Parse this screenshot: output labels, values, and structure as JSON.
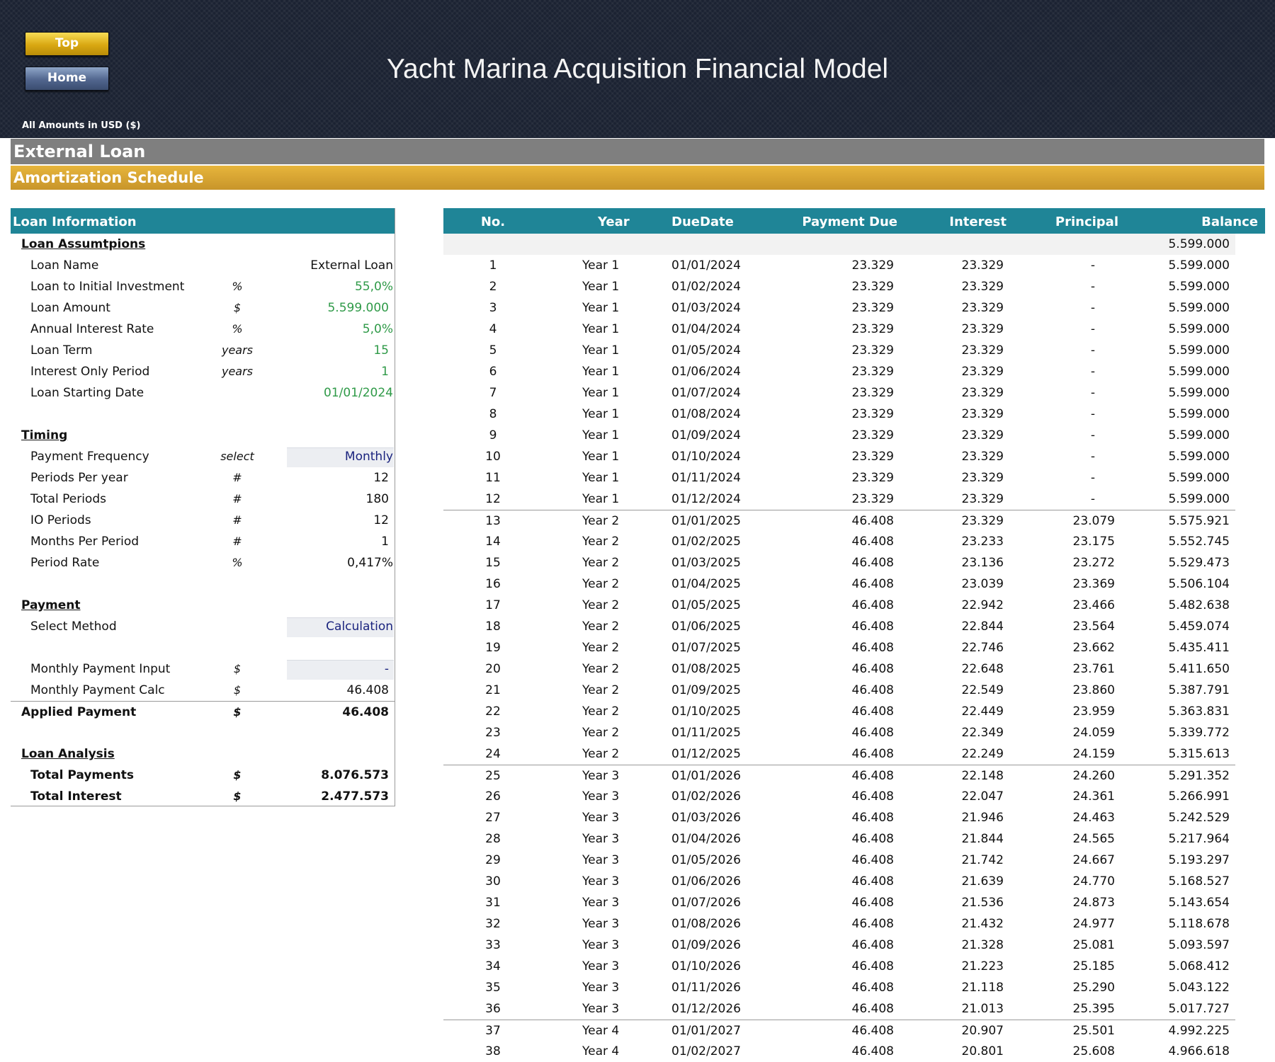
{
  "nav": {
    "top_label": "Top",
    "home_label": "Home"
  },
  "title": "Yacht Marina Acquisition Financial Model",
  "currency_note": "All Amounts in  USD ($)",
  "section_title": "External Loan",
  "subsection_title": "Amortization Schedule",
  "loan_info": {
    "header": "Loan Information",
    "assumptions_title": "Loan Assumtpions",
    "loan_name": {
      "label": "Loan Name",
      "unit": "",
      "value": "External Loan"
    },
    "loan_to_investment": {
      "label": "Loan to Initial Investment",
      "unit": "%",
      "value": "55,0%"
    },
    "loan_amount": {
      "label": "Loan Amount",
      "unit": "$",
      "value": "5.599.000"
    },
    "interest_rate": {
      "label": "Annual Interest Rate",
      "unit": "%",
      "value": "5,0%"
    },
    "loan_term": {
      "label": "Loan Term",
      "unit": "years",
      "value": "15"
    },
    "io_period": {
      "label": "Interest Only Period",
      "unit": "years",
      "value": "1"
    },
    "start_date": {
      "label": "Loan Starting Date",
      "unit": "",
      "value": "01/01/2024"
    },
    "timing_title": "Timing",
    "payment_frequency": {
      "label": "Payment Frequency",
      "unit": "select",
      "value": "Monthly"
    },
    "periods_per_year": {
      "label": "Periods Per year",
      "unit": "#",
      "value": "12"
    },
    "total_periods": {
      "label": "Total Periods",
      "unit": "#",
      "value": "180"
    },
    "io_periods": {
      "label": "IO Periods",
      "unit": "#",
      "value": "12"
    },
    "months_per_period": {
      "label": "Months Per Period",
      "unit": "#",
      "value": "1"
    },
    "period_rate": {
      "label": "Period Rate",
      "unit": "%",
      "value": "0,417%"
    },
    "payment_title": "Payment",
    "select_method": {
      "label": "Select Method",
      "unit": "",
      "value": "Calculation"
    },
    "monthly_payment_input": {
      "label": "Monthly Payment Input",
      "unit": "$",
      "value": "-"
    },
    "monthly_payment_calc": {
      "label": "Monthly Payment Calc",
      "unit": "$",
      "value": "46.408"
    },
    "applied_payment": {
      "label": "Applied Payment",
      "unit": "$",
      "value": "46.408"
    },
    "analysis_title": "Loan Analysis",
    "total_payments": {
      "label": "Total Payments",
      "unit": "$",
      "value": "8.076.573"
    },
    "total_interest": {
      "label": "Total Interest",
      "unit": "$",
      "value": "2.477.573"
    }
  },
  "schedule": {
    "headers": {
      "no": "No.",
      "year": "Year",
      "due_date": "DueDate",
      "payment_due": "Payment Due",
      "interest": "Interest",
      "principal": "Principal",
      "balance": "Balance"
    },
    "opening_balance": "5.599.000",
    "rows": [
      [
        "1",
        "Year 1",
        "01/01/2024",
        "23.329",
        "23.329",
        "-",
        "5.599.000"
      ],
      [
        "2",
        "Year 1",
        "01/02/2024",
        "23.329",
        "23.329",
        "-",
        "5.599.000"
      ],
      [
        "3",
        "Year 1",
        "01/03/2024",
        "23.329",
        "23.329",
        "-",
        "5.599.000"
      ],
      [
        "4",
        "Year 1",
        "01/04/2024",
        "23.329",
        "23.329",
        "-",
        "5.599.000"
      ],
      [
        "5",
        "Year 1",
        "01/05/2024",
        "23.329",
        "23.329",
        "-",
        "5.599.000"
      ],
      [
        "6",
        "Year 1",
        "01/06/2024",
        "23.329",
        "23.329",
        "-",
        "5.599.000"
      ],
      [
        "7",
        "Year 1",
        "01/07/2024",
        "23.329",
        "23.329",
        "-",
        "5.599.000"
      ],
      [
        "8",
        "Year 1",
        "01/08/2024",
        "23.329",
        "23.329",
        "-",
        "5.599.000"
      ],
      [
        "9",
        "Year 1",
        "01/09/2024",
        "23.329",
        "23.329",
        "-",
        "5.599.000"
      ],
      [
        "10",
        "Year 1",
        "01/10/2024",
        "23.329",
        "23.329",
        "-",
        "5.599.000"
      ],
      [
        "11",
        "Year 1",
        "01/11/2024",
        "23.329",
        "23.329",
        "-",
        "5.599.000"
      ],
      [
        "12",
        "Year 1",
        "01/12/2024",
        "23.329",
        "23.329",
        "-",
        "5.599.000"
      ],
      [
        "13",
        "Year 2",
        "01/01/2025",
        "46.408",
        "23.329",
        "23.079",
        "5.575.921"
      ],
      [
        "14",
        "Year 2",
        "01/02/2025",
        "46.408",
        "23.233",
        "23.175",
        "5.552.745"
      ],
      [
        "15",
        "Year 2",
        "01/03/2025",
        "46.408",
        "23.136",
        "23.272",
        "5.529.473"
      ],
      [
        "16",
        "Year 2",
        "01/04/2025",
        "46.408",
        "23.039",
        "23.369",
        "5.506.104"
      ],
      [
        "17",
        "Year 2",
        "01/05/2025",
        "46.408",
        "22.942",
        "23.466",
        "5.482.638"
      ],
      [
        "18",
        "Year 2",
        "01/06/2025",
        "46.408",
        "22.844",
        "23.564",
        "5.459.074"
      ],
      [
        "19",
        "Year 2",
        "01/07/2025",
        "46.408",
        "22.746",
        "23.662",
        "5.435.411"
      ],
      [
        "20",
        "Year 2",
        "01/08/2025",
        "46.408",
        "22.648",
        "23.761",
        "5.411.650"
      ],
      [
        "21",
        "Year 2",
        "01/09/2025",
        "46.408",
        "22.549",
        "23.860",
        "5.387.791"
      ],
      [
        "22",
        "Year 2",
        "01/10/2025",
        "46.408",
        "22.449",
        "23.959",
        "5.363.831"
      ],
      [
        "23",
        "Year 2",
        "01/11/2025",
        "46.408",
        "22.349",
        "24.059",
        "5.339.772"
      ],
      [
        "24",
        "Year 2",
        "01/12/2025",
        "46.408",
        "22.249",
        "24.159",
        "5.315.613"
      ],
      [
        "25",
        "Year 3",
        "01/01/2026",
        "46.408",
        "22.148",
        "24.260",
        "5.291.352"
      ],
      [
        "26",
        "Year 3",
        "01/02/2026",
        "46.408",
        "22.047",
        "24.361",
        "5.266.991"
      ],
      [
        "27",
        "Year 3",
        "01/03/2026",
        "46.408",
        "21.946",
        "24.463",
        "5.242.529"
      ],
      [
        "28",
        "Year 3",
        "01/04/2026",
        "46.408",
        "21.844",
        "24.565",
        "5.217.964"
      ],
      [
        "29",
        "Year 3",
        "01/05/2026",
        "46.408",
        "21.742",
        "24.667",
        "5.193.297"
      ],
      [
        "30",
        "Year 3",
        "01/06/2026",
        "46.408",
        "21.639",
        "24.770",
        "5.168.527"
      ],
      [
        "31",
        "Year 3",
        "01/07/2026",
        "46.408",
        "21.536",
        "24.873",
        "5.143.654"
      ],
      [
        "32",
        "Year 3",
        "01/08/2026",
        "46.408",
        "21.432",
        "24.977",
        "5.118.678"
      ],
      [
        "33",
        "Year 3",
        "01/09/2026",
        "46.408",
        "21.328",
        "25.081",
        "5.093.597"
      ],
      [
        "34",
        "Year 3",
        "01/10/2026",
        "46.408",
        "21.223",
        "25.185",
        "5.068.412"
      ],
      [
        "35",
        "Year 3",
        "01/11/2026",
        "46.408",
        "21.118",
        "25.290",
        "5.043.122"
      ],
      [
        "36",
        "Year 3",
        "01/12/2026",
        "46.408",
        "21.013",
        "25.395",
        "5.017.727"
      ],
      [
        "37",
        "Year 4",
        "01/01/2027",
        "46.408",
        "20.907",
        "25.501",
        "4.992.225"
      ],
      [
        "38",
        "Year 4",
        "01/02/2027",
        "46.408",
        "20.801",
        "25.608",
        "4.966.618"
      ]
    ]
  },
  "colors": {
    "header_bg": "#1b2232",
    "teal": "#1f8597",
    "gold": "#d8a532",
    "input_green": "#2f9a48",
    "select_navy": "#1a237e"
  }
}
